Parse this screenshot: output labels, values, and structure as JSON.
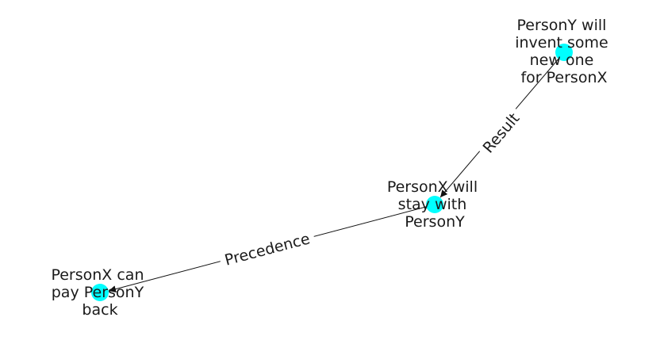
{
  "colors": {
    "node_fill": "#00ffff",
    "edge_stroke": "#111111",
    "text": "#1a1a1a",
    "background": "#ffffff"
  },
  "nodes": [
    {
      "id": "n1",
      "lines": [
        "PersonY will",
        "invent some",
        "new one",
        "for PersonX"
      ]
    },
    {
      "id": "n2",
      "lines": [
        "PersonX will",
        "stay with",
        "PersonY"
      ]
    },
    {
      "id": "n3",
      "lines": [
        "PersonX can",
        "pay PersonY",
        "back"
      ]
    }
  ],
  "edges": [
    {
      "from": "n1",
      "to": "n2",
      "label": "Result"
    },
    {
      "from": "n2",
      "to": "n3",
      "label": "Precedence"
    }
  ]
}
